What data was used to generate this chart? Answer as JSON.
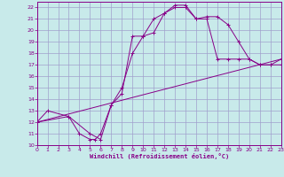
{
  "xlabel": "Windchill (Refroidissement éolien,°C)",
  "xlim": [
    0,
    23
  ],
  "ylim": [
    10,
    22.5
  ],
  "yticks": [
    10,
    11,
    12,
    13,
    14,
    15,
    16,
    17,
    18,
    19,
    20,
    21,
    22
  ],
  "xticks": [
    0,
    1,
    2,
    3,
    4,
    5,
    6,
    7,
    8,
    9,
    10,
    11,
    12,
    13,
    14,
    15,
    16,
    17,
    18,
    19,
    20,
    21,
    22,
    23
  ],
  "bg_color": "#c8eaea",
  "grid_color": "#a0a0cc",
  "line_color": "#880088",
  "curve1_x": [
    0,
    1,
    3,
    4,
    5,
    5.5,
    6,
    7,
    8,
    9,
    10,
    11,
    12,
    13,
    14,
    15,
    16,
    17,
    18,
    19,
    20,
    21,
    22,
    23
  ],
  "curve1_y": [
    12,
    13,
    12.5,
    11,
    10.5,
    10.5,
    11,
    13.5,
    15,
    18,
    19.5,
    19.8,
    21.5,
    22.2,
    22.2,
    21,
    21.2,
    21.2,
    20.5,
    19.0,
    17.5,
    17.0,
    17.0,
    17.0
  ],
  "curve2_x": [
    0,
    3,
    5,
    6,
    7,
    8,
    9,
    10,
    11,
    12,
    13,
    14,
    15,
    16,
    17,
    18,
    19,
    20,
    21,
    22,
    23
  ],
  "curve2_y": [
    12,
    12.5,
    11,
    10.5,
    13.5,
    14.5,
    19.5,
    19.5,
    21,
    21.5,
    22.0,
    22.0,
    21,
    21,
    17.5,
    17.5,
    17.5,
    17.5,
    17.0,
    17.0,
    17.5
  ],
  "line_x": [
    0,
    23
  ],
  "line_y": [
    12,
    17.5
  ],
  "tick_fontsize": 4.5,
  "xlabel_fontsize": 5.0
}
